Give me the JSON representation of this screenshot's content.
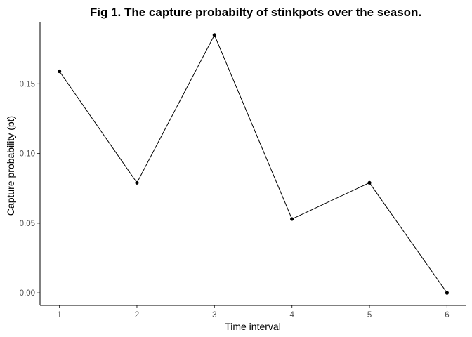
{
  "chart_data": {
    "type": "line",
    "title": "Fig 1. The capture probabilty of stinkpots over the season.",
    "xlabel": "Time interval",
    "ylabel": "Capture probability (pt)",
    "x": [
      1,
      2,
      3,
      4,
      5,
      6
    ],
    "y": [
      0.159,
      0.079,
      0.185,
      0.053,
      0.079,
      0.0
    ],
    "x_ticks": [
      1,
      2,
      3,
      4,
      5,
      6
    ],
    "x_tick_labels": [
      "1",
      "2",
      "3",
      "4",
      "5",
      "6"
    ],
    "y_ticks": [
      0.0,
      0.05,
      0.1,
      0.15
    ],
    "y_tick_labels": [
      "0.00",
      "0.05",
      "0.10",
      "0.15"
    ],
    "xlim": [
      0.75,
      6.25
    ],
    "ylim": [
      -0.009,
      0.194
    ],
    "grid": false,
    "legend": "none",
    "colors": {
      "line": "#000000",
      "points": "#000000"
    }
  }
}
